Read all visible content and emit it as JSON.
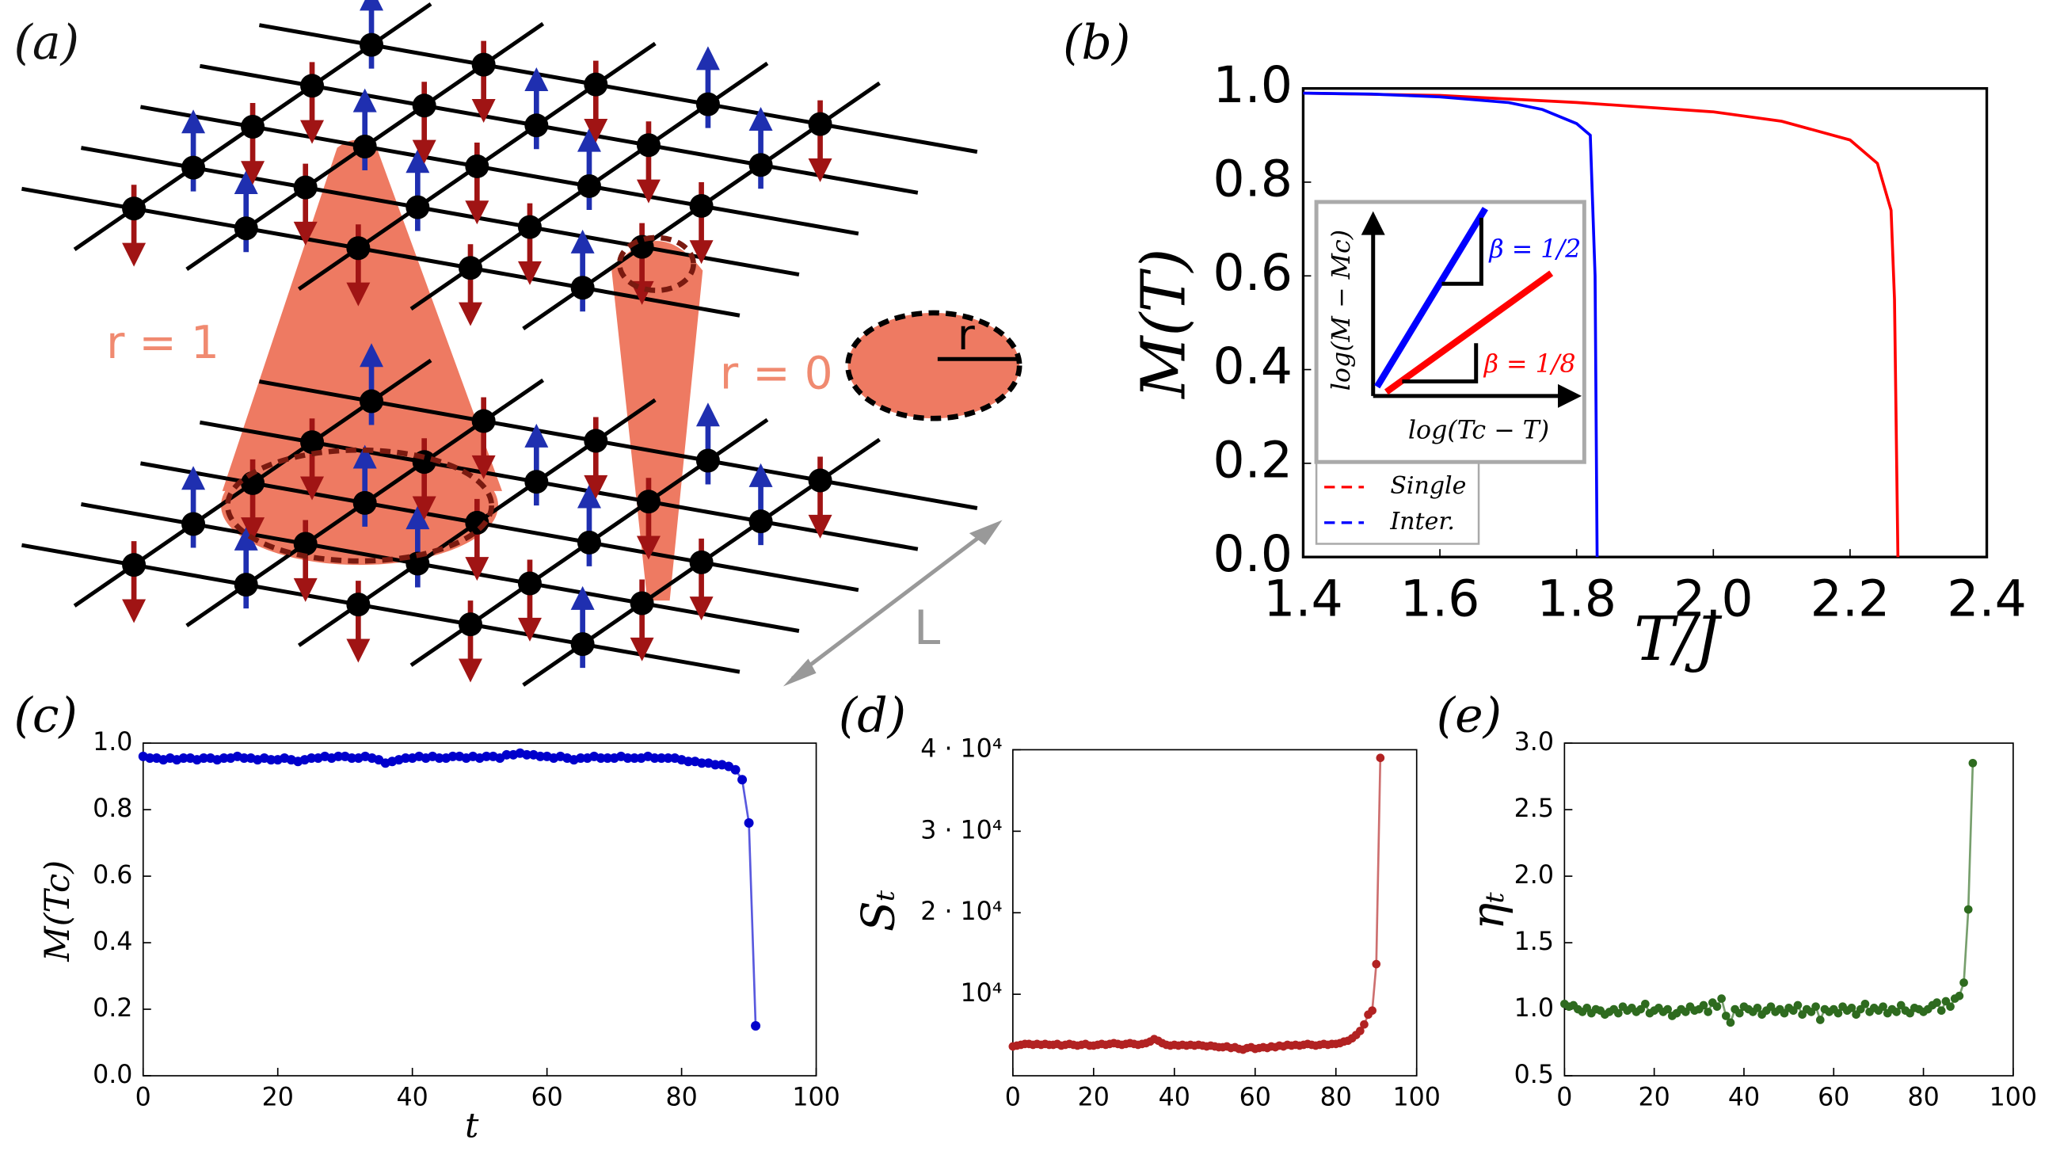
{
  "panel_a": {
    "label": "(a)",
    "r1": "r = 1",
    "r0": "r = 0",
    "r": "r",
    "L": "L"
  },
  "chart_data": [
    {
      "type": "line",
      "label": "(b)",
      "ylabel": "M(T)",
      "xlabel": "T/J",
      "xlim": [
        1.4,
        2.4
      ],
      "ylim": [
        0,
        1
      ],
      "xticks": [
        1.4,
        1.6,
        1.8,
        {
          "value": 2,
          "label": "2.0"
        },
        2.2,
        2.4
      ],
      "yticks": [
        {
          "value": 0,
          "label": "0.0"
        },
        0.2,
        0.4,
        0.6,
        0.8,
        {
          "value": 1,
          "label": "1.0"
        }
      ],
      "legend": "lower left",
      "series": [
        {
          "name": "Single",
          "color": "#ff0000",
          "x": [
            1.4,
            1.6,
            1.8,
            2.0,
            2.1,
            2.2,
            2.24,
            2.26,
            2.265,
            2.27
          ],
          "values": [
            0.99,
            0.985,
            0.97,
            0.95,
            0.93,
            0.89,
            0.84,
            0.74,
            0.55,
            0
          ]
        },
        {
          "name": "Inter.",
          "color": "#0000ff",
          "x": [
            1.4,
            1.5,
            1.6,
            1.7,
            1.75,
            1.8,
            1.82,
            1.827,
            1.83
          ],
          "values": [
            0.99,
            0.988,
            0.982,
            0.97,
            0.955,
            0.925,
            0.9,
            0.6,
            0
          ]
        }
      ],
      "inset": {
        "xlabel": "log(Tc − T)",
        "ylabel": "log(M − Mc)",
        "annotations": [
          {
            "text": "β = 1/2",
            "color": "#0000ff"
          },
          {
            "text": "β = 1/8",
            "color": "#ff0000"
          }
        ]
      }
    },
    {
      "type": "line",
      "label": "(c)",
      "ylabel": "M(Tc)",
      "xlabel": "t",
      "color": "#0000cc",
      "markers": true,
      "xlim": [
        0,
        100
      ],
      "ylim": [
        0,
        1
      ],
      "xticks": [
        0,
        20,
        40,
        60,
        80,
        100
      ],
      "yticks": [
        {
          "value": 0,
          "label": "0.0"
        },
        0.2,
        0.4,
        0.6,
        0.8,
        {
          "value": 1,
          "label": "1.0"
        }
      ],
      "x": [
        0,
        1,
        2,
        3,
        4,
        5,
        6,
        7,
        8,
        9,
        10,
        11,
        12,
        13,
        14,
        15,
        16,
        17,
        18,
        19,
        20,
        21,
        22,
        23,
        24,
        25,
        26,
        27,
        28,
        29,
        30,
        31,
        32,
        33,
        34,
        35,
        36,
        37,
        38,
        39,
        40,
        41,
        42,
        43,
        44,
        45,
        46,
        47,
        48,
        49,
        50,
        51,
        52,
        53,
        54,
        55,
        56,
        57,
        58,
        59,
        60,
        61,
        62,
        63,
        64,
        65,
        66,
        67,
        68,
        69,
        70,
        71,
        72,
        73,
        74,
        75,
        76,
        77,
        78,
        79,
        80,
        81,
        82,
        83,
        84,
        85,
        86,
        87,
        88,
        89,
        90,
        91
      ],
      "values": [
        0.96,
        0.955,
        0.955,
        0.95,
        0.955,
        0.95,
        0.955,
        0.955,
        0.95,
        0.955,
        0.955,
        0.95,
        0.955,
        0.955,
        0.96,
        0.955,
        0.955,
        0.95,
        0.955,
        0.95,
        0.95,
        0.955,
        0.95,
        0.945,
        0.95,
        0.955,
        0.955,
        0.96,
        0.955,
        0.96,
        0.96,
        0.955,
        0.955,
        0.96,
        0.955,
        0.95,
        0.94,
        0.945,
        0.95,
        0.955,
        0.955,
        0.96,
        0.955,
        0.96,
        0.955,
        0.955,
        0.96,
        0.96,
        0.955,
        0.96,
        0.955,
        0.96,
        0.96,
        0.955,
        0.965,
        0.965,
        0.97,
        0.965,
        0.965,
        0.96,
        0.96,
        0.955,
        0.96,
        0.955,
        0.95,
        0.955,
        0.955,
        0.96,
        0.955,
        0.955,
        0.955,
        0.96,
        0.955,
        0.955,
        0.955,
        0.96,
        0.955,
        0.955,
        0.955,
        0.955,
        0.95,
        0.945,
        0.945,
        0.94,
        0.94,
        0.935,
        0.935,
        0.93,
        0.92,
        0.89,
        0.76,
        0.15
      ]
    },
    {
      "type": "line",
      "label": "(d)",
      "ylabel": "Sₜ",
      "color": "#b22222",
      "markers": true,
      "xlim": [
        0,
        100
      ],
      "ylim": [
        0,
        40000
      ],
      "xticks": [
        0,
        20,
        40,
        60,
        80,
        100
      ],
      "yticks": [
        {
          "value": 10000,
          "label": "10⁴"
        },
        {
          "value": 20000,
          "label": "2 · 10⁴"
        },
        {
          "value": 30000,
          "label": "3 · 10⁴"
        },
        {
          "value": 40000,
          "label": "4 · 10⁴"
        }
      ],
      "x": [
        0,
        1,
        2,
        3,
        4,
        5,
        6,
        7,
        8,
        9,
        10,
        11,
        12,
        13,
        14,
        15,
        16,
        17,
        18,
        19,
        20,
        21,
        22,
        23,
        24,
        25,
        26,
        27,
        28,
        29,
        30,
        31,
        32,
        33,
        34,
        35,
        36,
        37,
        38,
        39,
        40,
        41,
        42,
        43,
        44,
        45,
        46,
        47,
        48,
        49,
        50,
        51,
        52,
        53,
        54,
        55,
        56,
        57,
        58,
        59,
        60,
        61,
        62,
        63,
        64,
        65,
        66,
        67,
        68,
        69,
        70,
        71,
        72,
        73,
        74,
        75,
        76,
        77,
        78,
        79,
        80,
        81,
        82,
        83,
        84,
        85,
        86,
        87,
        88,
        89,
        90,
        91
      ],
      "values": [
        3600,
        3700,
        3800,
        3900,
        3900,
        3800,
        3900,
        3800,
        3900,
        3800,
        3800,
        3900,
        3700,
        3800,
        3900,
        3800,
        3700,
        3800,
        3900,
        3700,
        3700,
        3800,
        3900,
        3800,
        3900,
        4000,
        3900,
        3800,
        3900,
        4000,
        3900,
        3800,
        3900,
        4000,
        4200,
        4500,
        4300,
        4000,
        3800,
        3700,
        3800,
        3700,
        3800,
        3700,
        3800,
        3700,
        3800,
        3700,
        3600,
        3700,
        3600,
        3500,
        3500,
        3600,
        3400,
        3500,
        3300,
        3200,
        3400,
        3500,
        3300,
        3400,
        3500,
        3400,
        3600,
        3500,
        3700,
        3600,
        3800,
        3700,
        3800,
        3700,
        3800,
        3900,
        3800,
        3700,
        3800,
        3900,
        3800,
        3900,
        3900,
        4000,
        4200,
        4300,
        4600,
        5000,
        5500,
        6300,
        7500,
        8000,
        13700,
        39000
      ]
    },
    {
      "type": "line",
      "label": "(e)",
      "ylabel": "ηₜ",
      "color": "#2e6b1f",
      "markers": true,
      "xlim": [
        0,
        100
      ],
      "ylim": [
        0.5,
        3
      ],
      "xticks": [
        0,
        20,
        40,
        60,
        80,
        100
      ],
      "yticks": [
        0.5,
        {
          "value": 1,
          "label": "1.0"
        },
        1.5,
        {
          "value": 2,
          "label": "2.0"
        },
        2.5,
        {
          "value": 3,
          "label": "3.0"
        }
      ],
      "x": [
        0,
        1,
        2,
        3,
        4,
        5,
        6,
        7,
        8,
        9,
        10,
        11,
        12,
        13,
        14,
        15,
        16,
        17,
        18,
        19,
        20,
        21,
        22,
        23,
        24,
        25,
        26,
        27,
        28,
        29,
        30,
        31,
        32,
        33,
        34,
        35,
        36,
        37,
        38,
        39,
        40,
        41,
        42,
        43,
        44,
        45,
        46,
        47,
        48,
        49,
        50,
        51,
        52,
        53,
        54,
        55,
        56,
        57,
        58,
        59,
        60,
        61,
        62,
        63,
        64,
        65,
        66,
        67,
        68,
        69,
        70,
        71,
        72,
        73,
        74,
        75,
        76,
        77,
        78,
        79,
        80,
        81,
        82,
        83,
        84,
        85,
        86,
        87,
        88,
        89,
        90,
        91
      ],
      "values": [
        1.04,
        1.02,
        1.03,
        1.0,
        0.98,
        1.01,
        0.97,
        1.0,
        0.99,
        0.96,
        0.98,
        1.0,
        0.97,
        1.02,
        0.99,
        1.01,
        0.98,
        1.0,
        1.04,
        0.97,
        0.99,
        1.01,
        0.98,
        1.0,
        0.95,
        0.97,
        1.0,
        0.98,
        1.02,
        0.99,
        1.0,
        1.03,
        0.98,
        1.05,
        1.02,
        1.08,
        0.95,
        0.9,
        1.0,
        0.97,
        1.02,
        1.0,
        0.98,
        1.01,
        0.96,
        0.99,
        1.02,
        0.98,
        1.0,
        0.97,
        1.01,
        0.99,
        1.03,
        0.96,
        1.0,
        0.98,
        1.02,
        0.92,
        1.0,
        0.98,
        1.0,
        0.97,
        1.02,
        0.99,
        1.01,
        0.96,
        1.0,
        1.04,
        0.98,
        1.01,
        0.99,
        1.02,
        0.97,
        1.0,
        0.98,
        1.03,
        0.99,
        0.97,
        1.01,
        1.0,
        0.98,
        1.0,
        1.03,
        1.05,
        0.99,
        1.06,
        1.02,
        1.08,
        1.1,
        1.2,
        1.75,
        2.85
      ]
    }
  ]
}
